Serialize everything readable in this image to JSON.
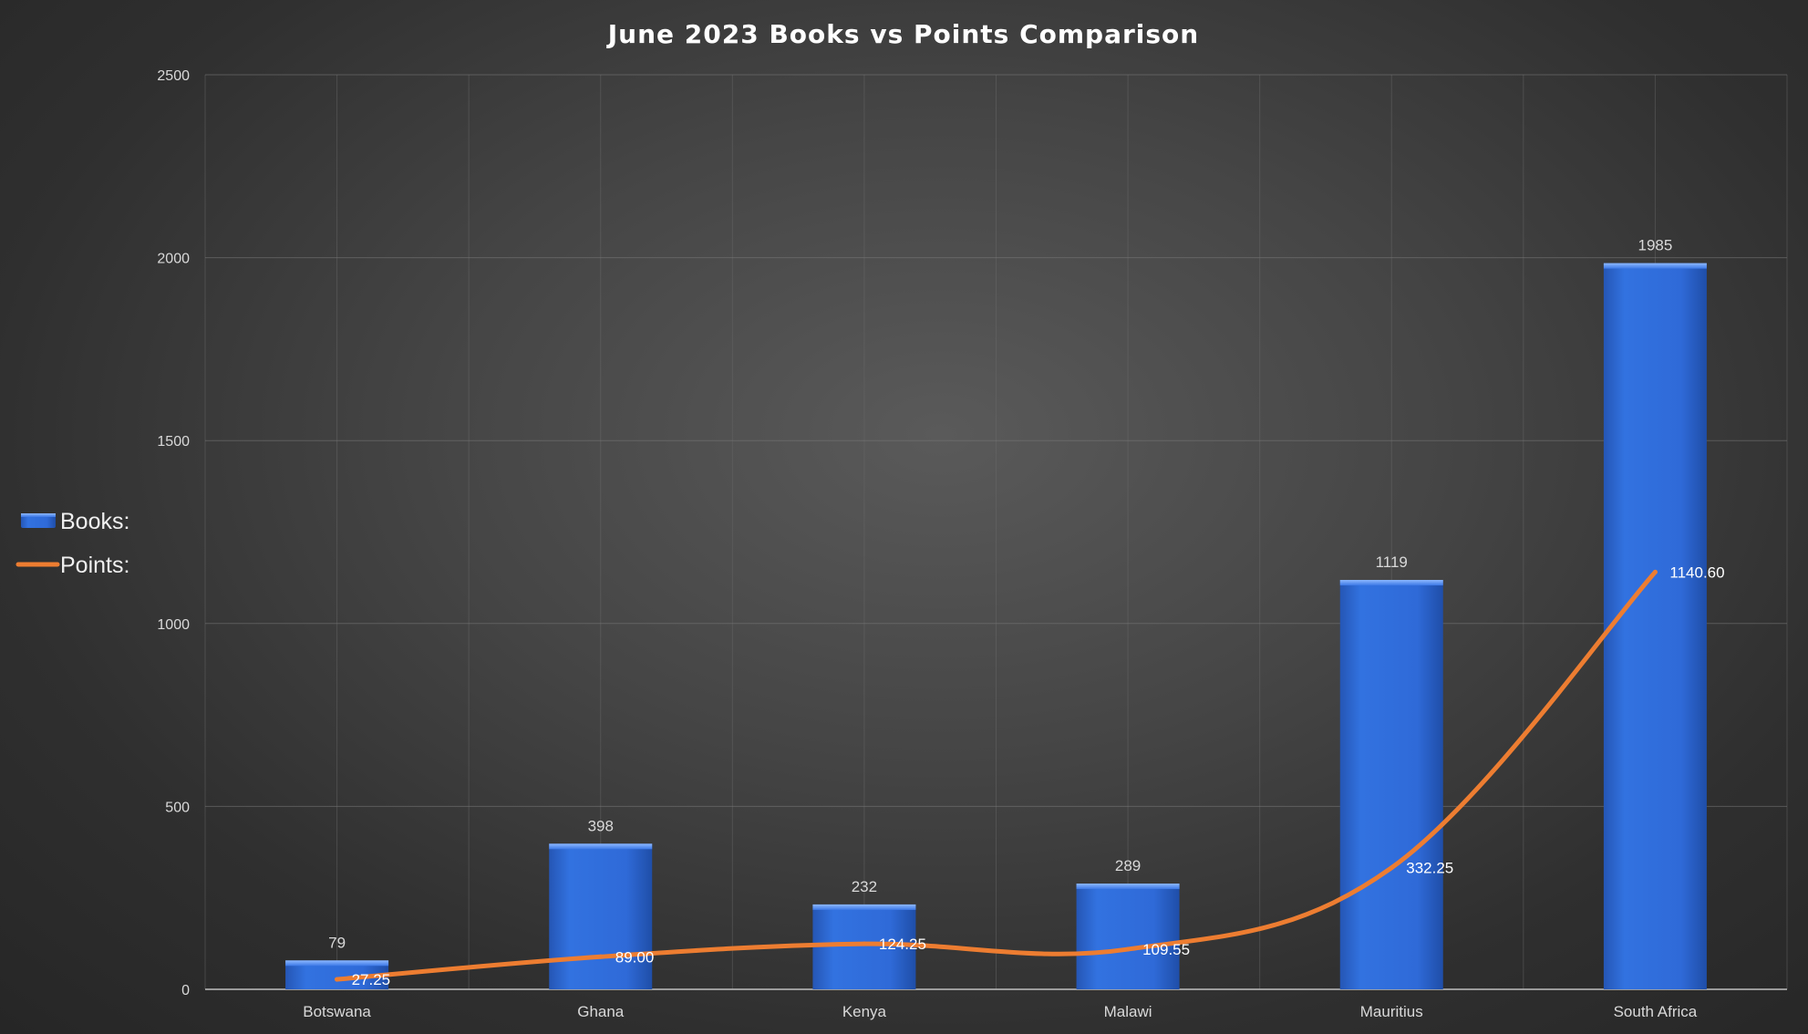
{
  "chart_data": {
    "type": "bar",
    "title": "June 2023 Books vs Points Comparison",
    "xlabel": "",
    "ylabel": "",
    "categories": [
      "Botswana",
      "Ghana",
      "Kenya",
      "Malawi",
      "Mauritius",
      "South Africa"
    ],
    "ylim": [
      0,
      2500
    ],
    "yticks": [
      0,
      500,
      1000,
      1500,
      2000,
      2500
    ],
    "grid": true,
    "legend_position": "left",
    "series": [
      {
        "name": "Books:",
        "type": "bar",
        "color": "#2f6ad8",
        "values": [
          79,
          398,
          232,
          289,
          1119,
          1985
        ],
        "labels": [
          "79",
          "398",
          "232",
          "289",
          "1119",
          "1985"
        ]
      },
      {
        "name": "Points:",
        "type": "line",
        "color": "#ed7d31",
        "values": [
          27.25,
          89.0,
          124.25,
          109.55,
          332.25,
          1140.6
        ],
        "labels": [
          "27.25",
          "89.00",
          "124.25",
          "109.55",
          "332.25",
          "1140.60"
        ]
      }
    ]
  }
}
